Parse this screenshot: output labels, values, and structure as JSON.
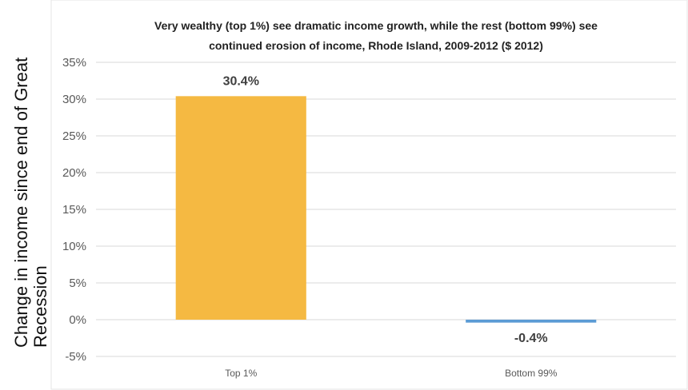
{
  "chart_data": {
    "type": "bar",
    "title_lines": [
      "Very wealthy (top 1%) see dramatic income growth, while the rest (bottom 99%)  see",
      "continued erosion of income, Rhode Island, 2009-2012 ($ 2012)"
    ],
    "ylabel_lines": [
      "Change in income since end of Great",
      "Recession"
    ],
    "xlabel": "",
    "categories": [
      "Top 1%",
      "Bottom 99%"
    ],
    "values": [
      30.4,
      -0.4
    ],
    "data_labels": [
      "30.4%",
      "-0.4%"
    ],
    "yticks": [
      35,
      30,
      25,
      20,
      15,
      10,
      5,
      0,
      -5
    ],
    "ytick_labels": [
      "35%",
      "30%",
      "25%",
      "20%",
      "15%",
      "10%",
      "5%",
      "0%",
      "-5%"
    ],
    "ylim": [
      -5,
      35
    ],
    "grid": true,
    "bar_colors": [
      "#f5b942",
      "#5b9bd5"
    ]
  }
}
